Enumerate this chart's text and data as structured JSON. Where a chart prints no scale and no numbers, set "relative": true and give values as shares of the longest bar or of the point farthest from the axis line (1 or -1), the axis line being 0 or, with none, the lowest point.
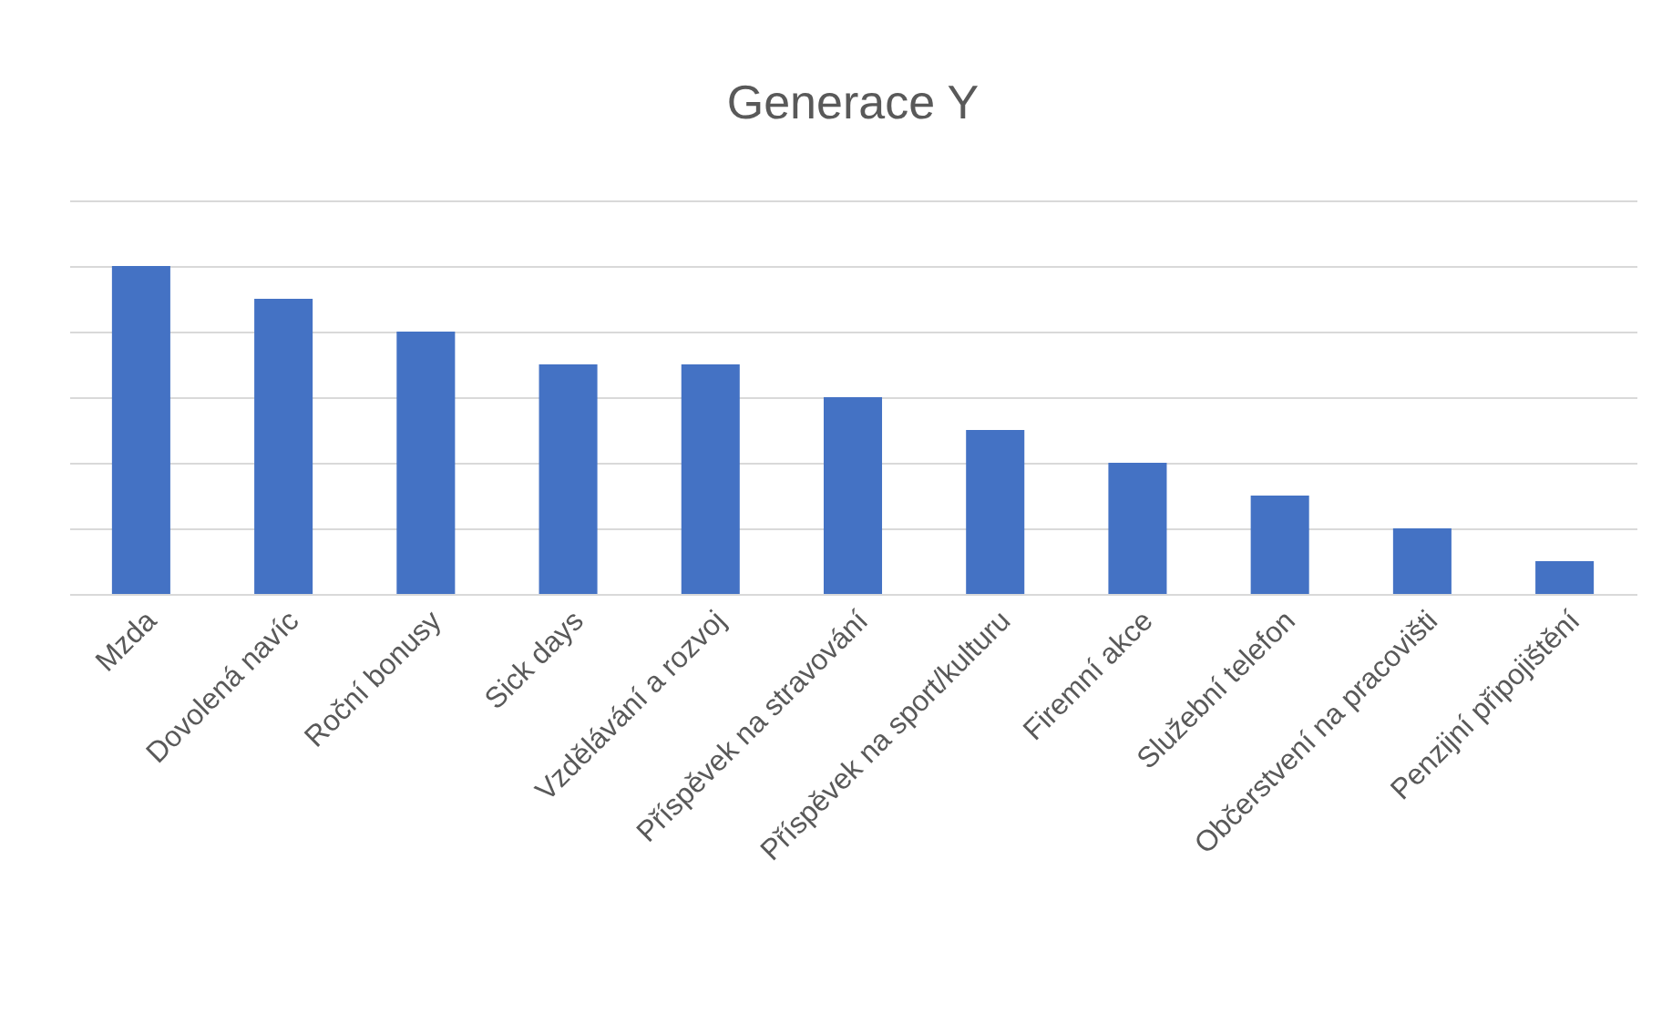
{
  "chart_data": {
    "type": "bar",
    "title": "Generace Y",
    "categories": [
      "Mzda",
      "Dovolená navíc",
      "Roční bonusy",
      "Sick days",
      "Vzdělávání a rozvoj",
      "Příspěvek na stravování",
      "Příspěvek na sport/kulturu",
      "Firemní akce",
      "Služební telefon",
      "Občerstvení na pracovišti",
      "Penzijní připojištění"
    ],
    "values": [
      1,
      0.9,
      0.8,
      0.7,
      0.7,
      0.6,
      0.5,
      0.4,
      0.3,
      0.2,
      0.1
    ],
    "color": "#4472c4",
    "relative": true,
    "grid": "y"
  }
}
